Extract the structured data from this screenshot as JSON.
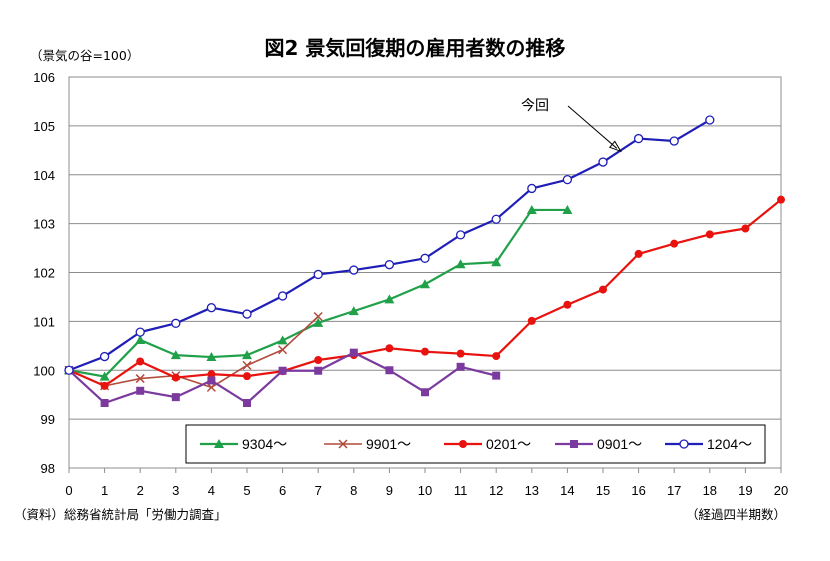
{
  "chart_data": {
    "type": "line",
    "title": "図2 景気回復期の雇用者数の推移",
    "ylabel": "（景気の谷=100）",
    "xlabel": "（経過四半期数）",
    "source": "（資料）総務省統計局「労働力調査」",
    "annotation": "今回",
    "xlim": [
      0,
      20
    ],
    "ylim": [
      98,
      106
    ],
    "x_ticks": [
      0,
      1,
      2,
      3,
      4,
      5,
      6,
      7,
      8,
      9,
      10,
      11,
      12,
      13,
      14,
      15,
      16,
      17,
      18,
      19,
      20
    ],
    "y_ticks": [
      98,
      99,
      100,
      101,
      102,
      103,
      104,
      105,
      106
    ],
    "grid": "horizontal",
    "legend_position": "bottom-right",
    "series": [
      {
        "name": "9304～",
        "color": "#21a04a",
        "marker": "triangle",
        "x": [
          0,
          1,
          2,
          3,
          4,
          5,
          6,
          7,
          8,
          9,
          10,
          11,
          12,
          13,
          14
        ],
        "values": [
          100.0,
          99.87,
          100.62,
          100.31,
          100.27,
          100.31,
          100.61,
          100.97,
          101.21,
          101.45,
          101.76,
          102.17,
          102.21,
          103.28,
          103.28
        ]
      },
      {
        "name": "9901～",
        "color": "#b24a3c",
        "marker": "x",
        "x": [
          0,
          1,
          2,
          3,
          4,
          5,
          6,
          7
        ],
        "values": [
          100.0,
          99.68,
          99.83,
          99.89,
          99.65,
          100.1,
          100.42,
          101.1
        ]
      },
      {
        "name": "0201～",
        "color": "#e8120e",
        "marker": "circle",
        "x": [
          0,
          1,
          2,
          3,
          4,
          5,
          6,
          7,
          8,
          9,
          10,
          11,
          12,
          13,
          14,
          15,
          16,
          17,
          18,
          19,
          20
        ],
        "values": [
          100.0,
          99.68,
          100.18,
          99.85,
          99.92,
          99.88,
          99.98,
          100.21,
          100.31,
          100.45,
          100.38,
          100.34,
          100.29,
          101.01,
          101.34,
          101.65,
          102.38,
          102.59,
          102.78,
          102.9,
          103.49
        ]
      },
      {
        "name": "0901～",
        "color": "#7b3b9e",
        "marker": "square",
        "x": [
          0,
          1,
          2,
          3,
          4,
          5,
          6,
          7,
          8,
          9,
          10,
          11,
          12
        ],
        "values": [
          100.0,
          99.33,
          99.58,
          99.45,
          99.79,
          99.33,
          99.99,
          99.99,
          100.36,
          100.0,
          99.55,
          100.07,
          99.89
        ]
      },
      {
        "name": "1204～",
        "color": "#1f1fb8",
        "marker": "open-circle",
        "x": [
          0,
          1,
          2,
          3,
          4,
          5,
          6,
          7,
          8,
          9,
          10,
          11,
          12,
          13,
          14,
          15,
          16,
          17,
          18
        ],
        "values": [
          100.0,
          100.28,
          100.78,
          100.96,
          101.28,
          101.15,
          101.52,
          101.96,
          102.05,
          102.16,
          102.29,
          102.77,
          103.09,
          103.72,
          103.9,
          104.26,
          104.74,
          104.69,
          105.12
        ]
      }
    ]
  }
}
